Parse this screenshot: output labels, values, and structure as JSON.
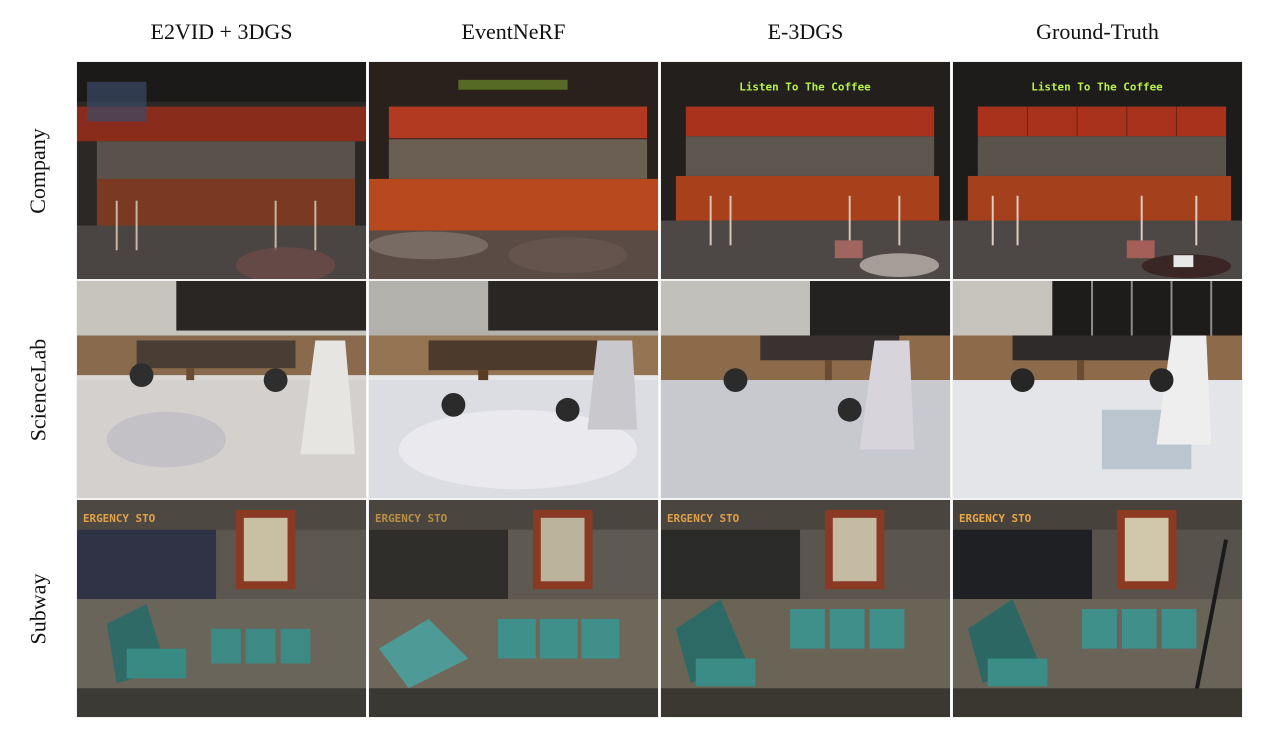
{
  "columns": [
    {
      "label": "E2VID + 3DGS"
    },
    {
      "label": "EventNeRF"
    },
    {
      "label": "E-3DGS"
    },
    {
      "label": "Ground-Truth"
    }
  ],
  "rows": [
    {
      "label": "Company"
    },
    {
      "label": "ScienceLab"
    },
    {
      "label": "Subway"
    }
  ],
  "scene_text": {
    "company_sign": "Listen To The Coffee",
    "subway_sign": "ERGENCY STO"
  },
  "colors": {
    "cabinet_red": "#a8321c",
    "sign_green": "#b8f04a",
    "seat_teal": "#3f8f8a",
    "lab_floor": "#d8dbe0",
    "bench_wood": "#7a5634"
  }
}
